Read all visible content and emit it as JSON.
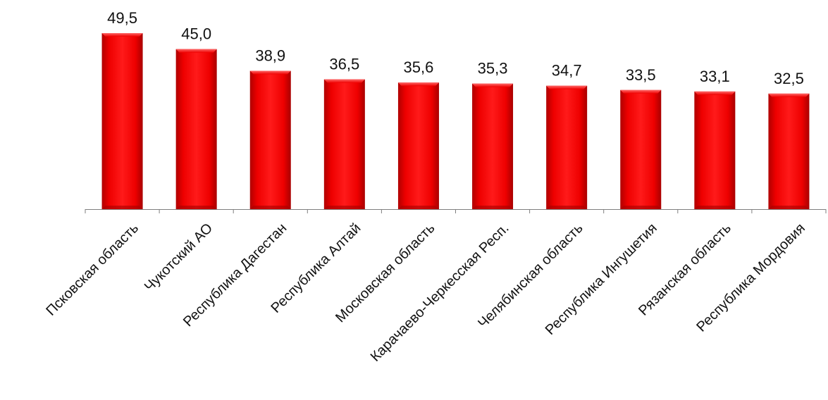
{
  "chart_data": {
    "type": "bar",
    "title": "",
    "xlabel": "",
    "ylabel": "",
    "categories": [
      "Псковская область",
      "Чукотский АО",
      "Республика Дагестан",
      "Республика Алтай",
      "Московская область",
      "Карачаево-Черкесская Респ.",
      "Челябинская область",
      "Республика Ингушетия",
      "Рязанская область",
      "Республика Мордовия"
    ],
    "values": [
      49.5,
      45.0,
      38.9,
      36.5,
      35.6,
      35.3,
      34.7,
      33.5,
      33.1,
      32.5
    ],
    "value_labels": [
      "49,5",
      "45,0",
      "38,9",
      "36,5",
      "35,6",
      "35,3",
      "34,7",
      "33,5",
      "33,1",
      "32,5"
    ],
    "ylim": [
      0,
      49.5
    ],
    "grid": false,
    "legend": "none",
    "colors": {
      "bar": "#ee0000",
      "bar_dark": "#a80000",
      "bar_light": "#ff4a4a",
      "axis": "#7f7f7f"
    }
  }
}
